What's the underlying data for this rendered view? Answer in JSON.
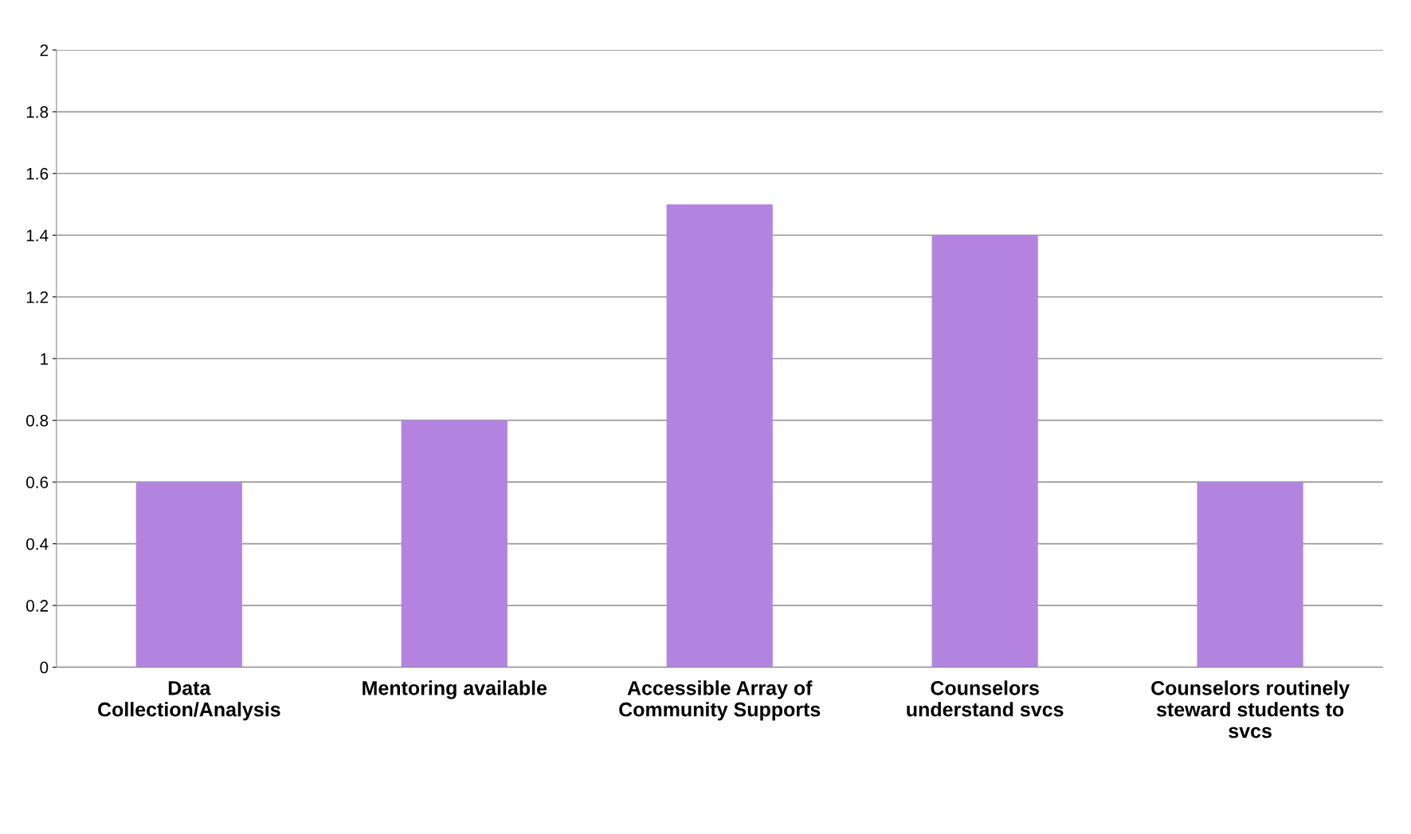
{
  "chart_data": {
    "type": "bar",
    "categories": [
      "Data\nCollection/Analysis",
      "Mentoring available",
      "Accessible Array of\nCommunity Supports",
      "Counselors\nunderstand svcs",
      "Counselors routinely\nsteward students to\nsvcs"
    ],
    "values": [
      0.6,
      0.8,
      1.5,
      1.4,
      0.6
    ],
    "color": "#b284e0",
    "ylim": [
      0,
      2
    ],
    "yticks": [
      0,
      0.2,
      0.4,
      0.6,
      0.8,
      1,
      1.2,
      1.4,
      1.6,
      1.8,
      2
    ],
    "grid": "y"
  }
}
